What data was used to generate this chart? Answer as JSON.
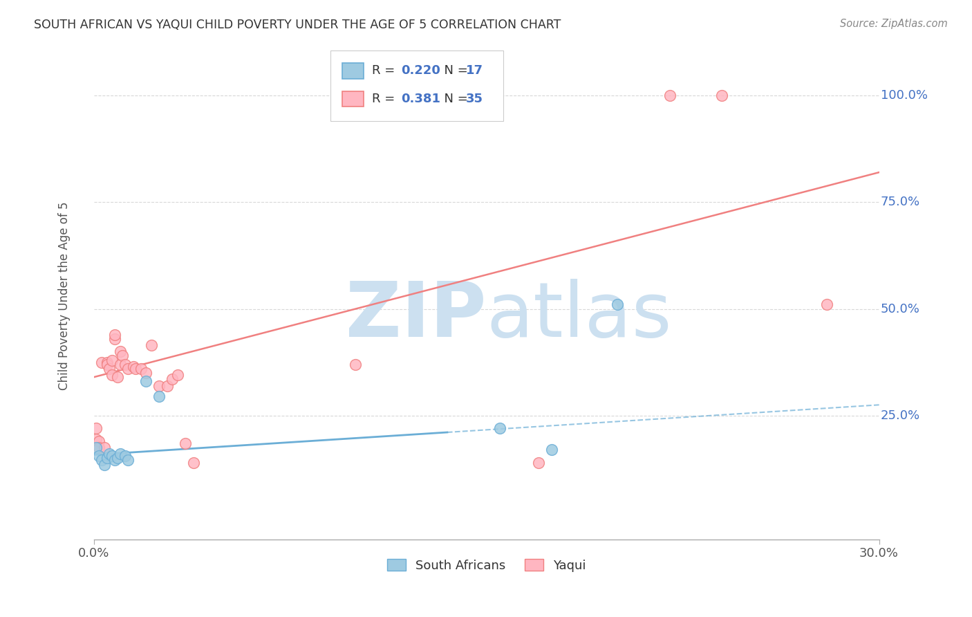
{
  "title": "SOUTH AFRICAN VS YAQUI CHILD POVERTY UNDER THE AGE OF 5 CORRELATION CHART",
  "source": "Source: ZipAtlas.com",
  "ylabel": "Child Poverty Under the Age of 5",
  "ytick_labels": [
    "100.0%",
    "75.0%",
    "50.0%",
    "25.0%"
  ],
  "ytick_values": [
    1.0,
    0.75,
    0.5,
    0.25
  ],
  "xlim": [
    0.0,
    0.3
  ],
  "ylim": [
    -0.04,
    1.1
  ],
  "background_color": "#ffffff",
  "watermark_zip": "ZIP",
  "watermark_atlas": "atlas",
  "watermark_color": "#cce0f0",
  "south_african_color": "#6baed6",
  "south_african_fill": "#9ecae1",
  "yaqui_color": "#f08080",
  "yaqui_fill": "#ffb6c1",
  "south_african_R": 0.22,
  "south_african_N": 17,
  "yaqui_R": 0.381,
  "yaqui_N": 35,
  "south_african_x": [
    0.001,
    0.002,
    0.003,
    0.004,
    0.005,
    0.006,
    0.007,
    0.008,
    0.009,
    0.01,
    0.012,
    0.013,
    0.02,
    0.025,
    0.155,
    0.175,
    0.2
  ],
  "south_african_y": [
    0.175,
    0.155,
    0.145,
    0.135,
    0.15,
    0.16,
    0.155,
    0.145,
    0.15,
    0.16,
    0.155,
    0.145,
    0.33,
    0.295,
    0.22,
    0.17,
    0.51
  ],
  "yaqui_x": [
    0.001,
    0.001,
    0.002,
    0.002,
    0.003,
    0.004,
    0.005,
    0.005,
    0.006,
    0.007,
    0.007,
    0.008,
    0.008,
    0.009,
    0.01,
    0.01,
    0.011,
    0.012,
    0.013,
    0.015,
    0.016,
    0.018,
    0.02,
    0.022,
    0.025,
    0.028,
    0.03,
    0.032,
    0.035,
    0.038,
    0.1,
    0.17,
    0.22,
    0.24,
    0.28
  ],
  "yaqui_y": [
    0.22,
    0.195,
    0.19,
    0.175,
    0.375,
    0.175,
    0.375,
    0.37,
    0.36,
    0.345,
    0.38,
    0.43,
    0.44,
    0.34,
    0.37,
    0.4,
    0.39,
    0.37,
    0.36,
    0.365,
    0.36,
    0.36,
    0.35,
    0.415,
    0.32,
    0.32,
    0.335,
    0.345,
    0.185,
    0.14,
    0.37,
    0.14,
    1.0,
    1.0,
    0.51
  ],
  "sa_trendline_x": [
    0.0,
    0.3
  ],
  "sa_trendline_y": [
    0.158,
    0.275
  ],
  "yaqui_trendline_x": [
    0.0,
    0.3
  ],
  "yaqui_trendline_y": [
    0.34,
    0.82
  ],
  "grid_color": "#d8d8d8",
  "grid_style": "--"
}
